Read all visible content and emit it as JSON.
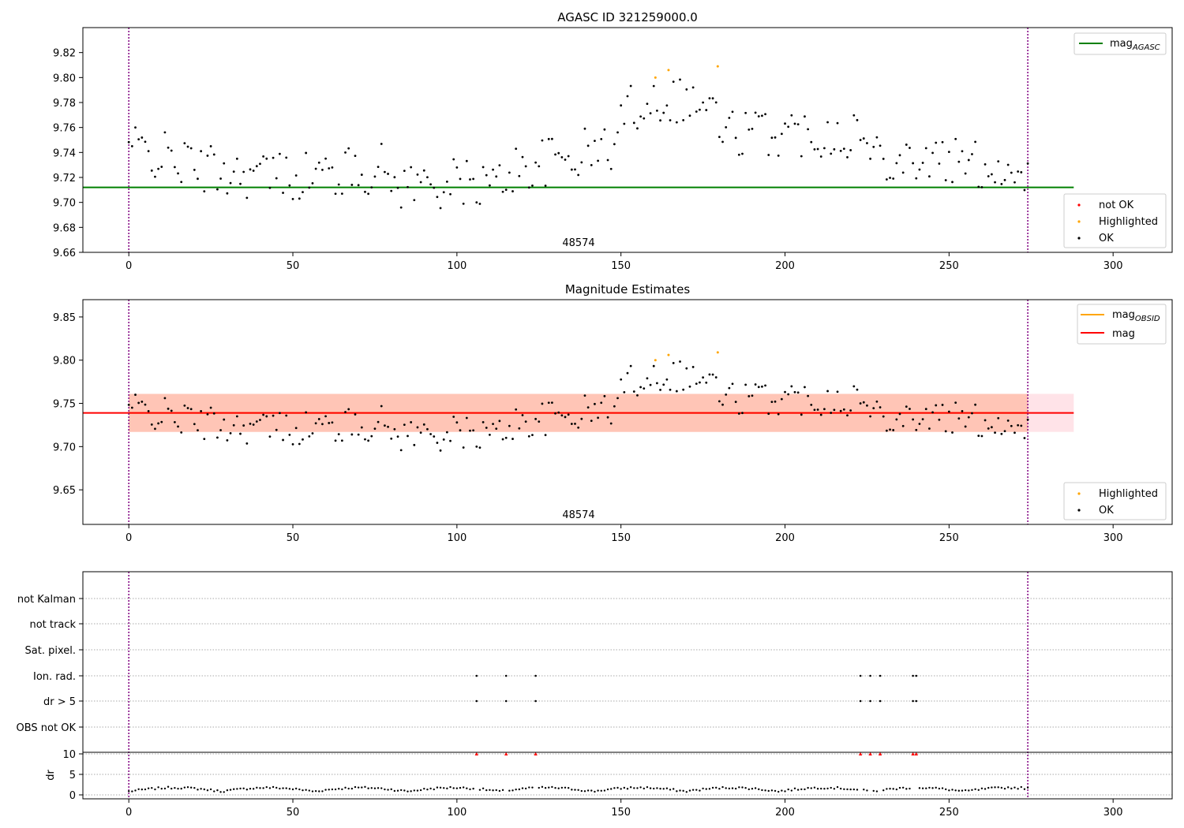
{
  "colors": {
    "ok": "#000000",
    "highlighted": "#ffa500",
    "not_ok": "#ff0000",
    "agasc_line": "#008000",
    "mag_line": "#ff0000",
    "mag_obsid_line": "#ffa500",
    "band_pink": "#ffc0cb",
    "band_orange": "#ffa07a",
    "obs_boundary": "#800080"
  },
  "chart_data": [
    {
      "type": "scatter",
      "title": "AGASC ID 321259000.0",
      "xlabel": "",
      "ylabel": "",
      "xlim": [
        -14,
        318
      ],
      "ylim": [
        9.66,
        9.84
      ],
      "xticks": [
        "0",
        "50",
        "100",
        "150",
        "200",
        "250",
        "300"
      ],
      "yticks": [
        "9.66",
        "9.68",
        "9.70",
        "9.72",
        "9.74",
        "9.76",
        "9.78",
        "9.80",
        "9.82"
      ],
      "obs_boundaries": [
        0,
        274
      ],
      "obs_label": "48574",
      "mag_agasc": 9.712,
      "legend_lines": [
        {
          "name": "mag_AGASC",
          "base": "mag",
          "sub": "AGASC"
        }
      ],
      "legend_points": [
        "not OK",
        "Highlighted",
        "OK"
      ],
      "highlighted": [
        [
          160.5,
          9.8
        ],
        [
          164.5,
          9.806
        ],
        [
          179.5,
          9.809
        ]
      ]
    },
    {
      "type": "scatter",
      "title": "Magnitude Estimates",
      "xlabel": "",
      "ylabel": "",
      "xlim": [
        -14,
        318
      ],
      "ylim": [
        9.61,
        9.87
      ],
      "xticks": [
        "0",
        "50",
        "100",
        "150",
        "200",
        "250",
        "300"
      ],
      "yticks": [
        "9.65",
        "9.70",
        "9.75",
        "9.80",
        "9.85"
      ],
      "obs_boundaries": [
        0,
        274
      ],
      "obs_label": "48574",
      "mag": 9.739,
      "mag_band": [
        9.717,
        9.761
      ],
      "mag_obsid_band": [
        9.717,
        9.761
      ],
      "legend_lines": [
        {
          "name": "mag_OBSID",
          "base": "mag",
          "sub": "OBSID"
        },
        {
          "name": "mag",
          "base": "mag",
          "sub": ""
        }
      ],
      "legend_points": [
        "Highlighted",
        "OK"
      ],
      "highlighted": [
        [
          160.5,
          9.8
        ],
        [
          164.5,
          9.806
        ],
        [
          179.5,
          9.809
        ]
      ]
    },
    {
      "type": "scatter",
      "title": "",
      "xlabel": "",
      "ylabel": "",
      "xlim": [
        -14,
        318
      ],
      "xticks": [
        "0",
        "50",
        "100",
        "150",
        "200",
        "250",
        "300"
      ],
      "obs_boundaries": [
        0,
        274
      ],
      "flag_labels": [
        "not Kalman",
        "not track",
        "Sat. pixel.",
        "Ion. rad.",
        "dr > 5",
        "OBS not OK"
      ],
      "flag_events": {
        "Ion. rad.": [
          106,
          115,
          124,
          223,
          226,
          229,
          239,
          240
        ],
        "dr > 5": [
          106,
          115,
          124,
          223,
          226,
          229,
          239,
          240
        ]
      },
      "dr_ylabel": "dr",
      "dr_yticks": [
        "0",
        "5",
        "10"
      ],
      "dr_ylim": [
        0,
        10
      ],
      "dr_capped_at_10": [
        106,
        115,
        124,
        223,
        226,
        229,
        239,
        240
      ]
    }
  ]
}
